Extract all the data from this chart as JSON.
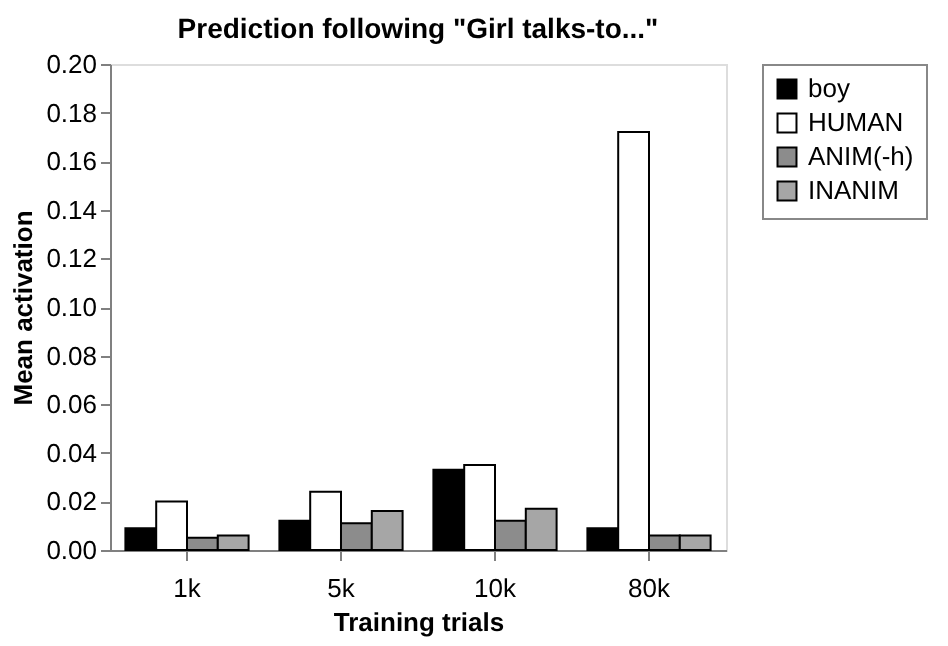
{
  "chart_data": {
    "type": "bar",
    "title": "Prediction following \"Girl talks-to...\"",
    "xlabel": "Training trials",
    "ylabel": "Mean activation",
    "categories": [
      "1k",
      "5k",
      "10k",
      "80k"
    ],
    "series": [
      {
        "name": "boy",
        "color": "#000000",
        "values": [
          0.009,
          0.012,
          0.033,
          0.009
        ]
      },
      {
        "name": "HUMAN",
        "color": "#ffffff",
        "values": [
          0.02,
          0.024,
          0.035,
          0.172
        ]
      },
      {
        "name": "ANIM(-h)",
        "color": "#8c8c8c",
        "values": [
          0.005,
          0.011,
          0.012,
          0.006
        ]
      },
      {
        "name": "INANIM",
        "color": "#a6a6a6",
        "values": [
          0.006,
          0.016,
          0.017,
          0.006
        ]
      }
    ],
    "ylim": [
      0,
      0.2
    ],
    "yticks": [
      {
        "value": 0,
        "label": "0.00"
      },
      {
        "value": 0.02,
        "label": "0.02"
      },
      {
        "value": 0.04,
        "label": "0.04"
      },
      {
        "value": 0.06,
        "label": "0.06"
      },
      {
        "value": 0.08,
        "label": "0.08"
      },
      {
        "value": 0.1,
        "label": "0.10"
      },
      {
        "value": 0.12,
        "label": "0.12"
      },
      {
        "value": 0.14,
        "label": "0.14"
      },
      {
        "value": 0.16,
        "label": "0.16"
      },
      {
        "value": 0.18,
        "label": "0.18"
      },
      {
        "value": 0.2,
        "label": "0.20"
      }
    ],
    "grid": false,
    "legend": "right"
  }
}
